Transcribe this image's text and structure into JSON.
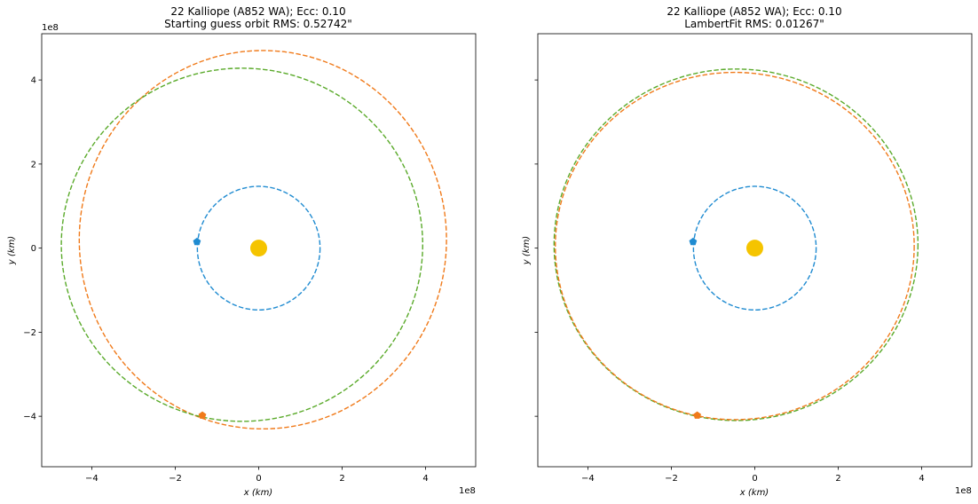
{
  "chart_data": [
    {
      "type": "scatter",
      "title_line1": "22 Kalliope (A852 WA); Ecc: 0.10",
      "title_line2": "Starting guess orbit RMS: 0.52742\"",
      "xlabel": "x (km)",
      "ylabel": "y (km)",
      "xlim": [
        -520000000.0,
        520000000.0
      ],
      "ylim": [
        -520000000.0,
        510000000.0
      ],
      "offset_text": "1e8",
      "xticks": [
        -400000000.0,
        -200000000.0,
        0,
        200000000.0,
        400000000.0
      ],
      "xtick_labels": [
        "−4",
        "−2",
        "0",
        "2",
        "4"
      ],
      "yticks": [
        -400000000.0,
        -200000000.0,
        0,
        200000000.0,
        400000000.0
      ],
      "ytick_labels": [
        "−4",
        "−2",
        "0",
        "2",
        "4"
      ],
      "show_ytick_labels": true,
      "grid": false,
      "sun": {
        "x": 0,
        "y": 0,
        "color": "#f5c400"
      },
      "orbits": [
        {
          "color": "#1f8bd1",
          "center": [
            0,
            0
          ],
          "rx": 147000000.0,
          "ry": 147000000.0,
          "tilt_deg": 0
        },
        {
          "color": "#f07a1a",
          "center": [
            10000000.0,
            20000000.0
          ],
          "rx": 440000000.0,
          "ry": 450000000.0,
          "tilt_deg": 0
        },
        {
          "color": "#5aaa2a",
          "center": [
            -40000000.0,
            8000000.0
          ],
          "rx": 433000000.0,
          "ry": 420000000.0,
          "tilt_deg": 0
        }
      ],
      "markers": [
        {
          "color": "#1f8bd1",
          "x": -148000000.0,
          "y": 15000000.0
        },
        {
          "color": "#f07a1a",
          "x": -135000000.0,
          "y": -398000000.0
        }
      ]
    },
    {
      "type": "scatter",
      "title_line1": "22 Kalliope (A852 WA); Ecc: 0.10",
      "title_line2": "LambertFit RMS: 0.01267\"",
      "xlabel": "x (km)",
      "ylabel": "y (km)",
      "xlim": [
        -520000000.0,
        520000000.0
      ],
      "ylim": [
        -520000000.0,
        510000000.0
      ],
      "offset_text": "1e8",
      "xticks": [
        -400000000.0,
        -200000000.0,
        0,
        200000000.0,
        400000000.0
      ],
      "xtick_labels": [
        "−4",
        "−2",
        "0",
        "2",
        "4"
      ],
      "yticks": [
        -400000000.0,
        -200000000.0,
        0,
        200000000.0,
        400000000.0
      ],
      "ytick_labels": [
        "",
        "",
        "",
        "",
        ""
      ],
      "show_ytick_labels": false,
      "grid": false,
      "sun": {
        "x": 0,
        "y": 0,
        "color": "#f5c400"
      },
      "orbits": [
        {
          "color": "#1f8bd1",
          "center": [
            0,
            0
          ],
          "rx": 147000000.0,
          "ry": 147000000.0,
          "tilt_deg": 0
        },
        {
          "color": "#5aaa2a",
          "center": [
            -45000000.0,
            8000000.0
          ],
          "rx": 436000000.0,
          "ry": 418000000.0,
          "tilt_deg": 0
        },
        {
          "color": "#f07a1a",
          "center": [
            -48000000.0,
            5000000.0
          ],
          "rx": 430000000.0,
          "ry": 413000000.0,
          "tilt_deg": 0
        }
      ],
      "markers": [
        {
          "color": "#1f8bd1",
          "x": -148000000.0,
          "y": 15000000.0
        },
        {
          "color": "#f07a1a",
          "x": -138000000.0,
          "y": -398000000.0
        }
      ]
    }
  ]
}
